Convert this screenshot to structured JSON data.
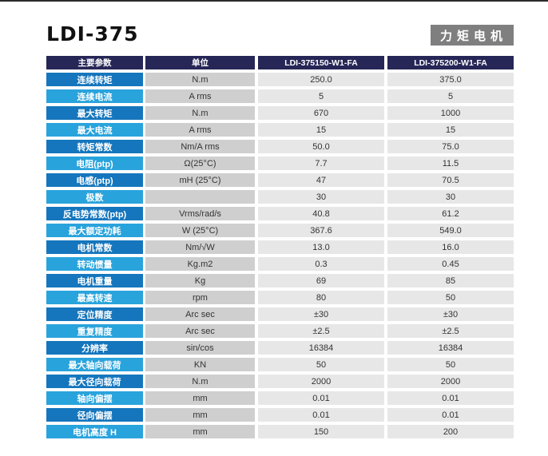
{
  "title": "LDI-375",
  "badge": "力矩电机",
  "table": {
    "headers": [
      "主要参数",
      "单位",
      "LDI-375150-W1-FA",
      "LDI-375200-W1-FA"
    ],
    "rows": [
      {
        "param": "连续转矩",
        "unit": "N.m",
        "v1": "250.0",
        "v2": "375.0"
      },
      {
        "param": "连续电流",
        "unit": "A rms",
        "v1": "5",
        "v2": "5"
      },
      {
        "param": "最大转矩",
        "unit": "N.m",
        "v1": "670",
        "v2": "1000"
      },
      {
        "param": "最大电流",
        "unit": "A rms",
        "v1": "15",
        "v2": "15"
      },
      {
        "param": "转矩常数",
        "unit": "Nm/A rms",
        "v1": "50.0",
        "v2": "75.0"
      },
      {
        "param": "电阻(ptp)",
        "unit": "Ω(25°C)",
        "v1": "7.7",
        "v2": "11.5"
      },
      {
        "param": "电感(ptp)",
        "unit": "mH (25°C)",
        "v1": "47",
        "v2": "70.5"
      },
      {
        "param": "极数",
        "unit": "",
        "v1": "30",
        "v2": "30"
      },
      {
        "param": "反电势常数(ptp)",
        "unit": "Vrms/rad/s",
        "v1": "40.8",
        "v2": "61.2"
      },
      {
        "param": "最大额定功耗",
        "unit": "W (25°C)",
        "v1": "367.6",
        "v2": "549.0"
      },
      {
        "param": "电机常数",
        "unit": "Nm/√W",
        "v1": "13.0",
        "v2": "16.0"
      },
      {
        "param": "转动惯量",
        "unit": "Kg.m2",
        "v1": "0.3",
        "v2": "0.45"
      },
      {
        "param": "电机重量",
        "unit": "Kg",
        "v1": "69",
        "v2": "85"
      },
      {
        "param": "最高转速",
        "unit": "rpm",
        "v1": "80",
        "v2": "50"
      },
      {
        "param": "定位精度",
        "unit": "Arc sec",
        "v1": "±30",
        "v2": "±30"
      },
      {
        "param": "重复精度",
        "unit": "Arc sec",
        "v1": "±2.5",
        "v2": "±2.5"
      },
      {
        "param": "分辨率",
        "unit": "sin/cos",
        "v1": "16384",
        "v2": "16384"
      },
      {
        "param": "最大轴向载荷",
        "unit": "KN",
        "v1": "50",
        "v2": "50"
      },
      {
        "param": "最大径向载荷",
        "unit": "N.m",
        "v1": "2000",
        "v2": "2000"
      },
      {
        "param": "轴向偏摆",
        "unit": "mm",
        "v1": "0.01",
        "v2": "0.01"
      },
      {
        "param": "径向偏摆",
        "unit": "mm",
        "v1": "0.01",
        "v2": "0.01"
      },
      {
        "param": "电机高度 H",
        "unit": "mm",
        "v1": "150",
        "v2": "200"
      }
    ]
  }
}
